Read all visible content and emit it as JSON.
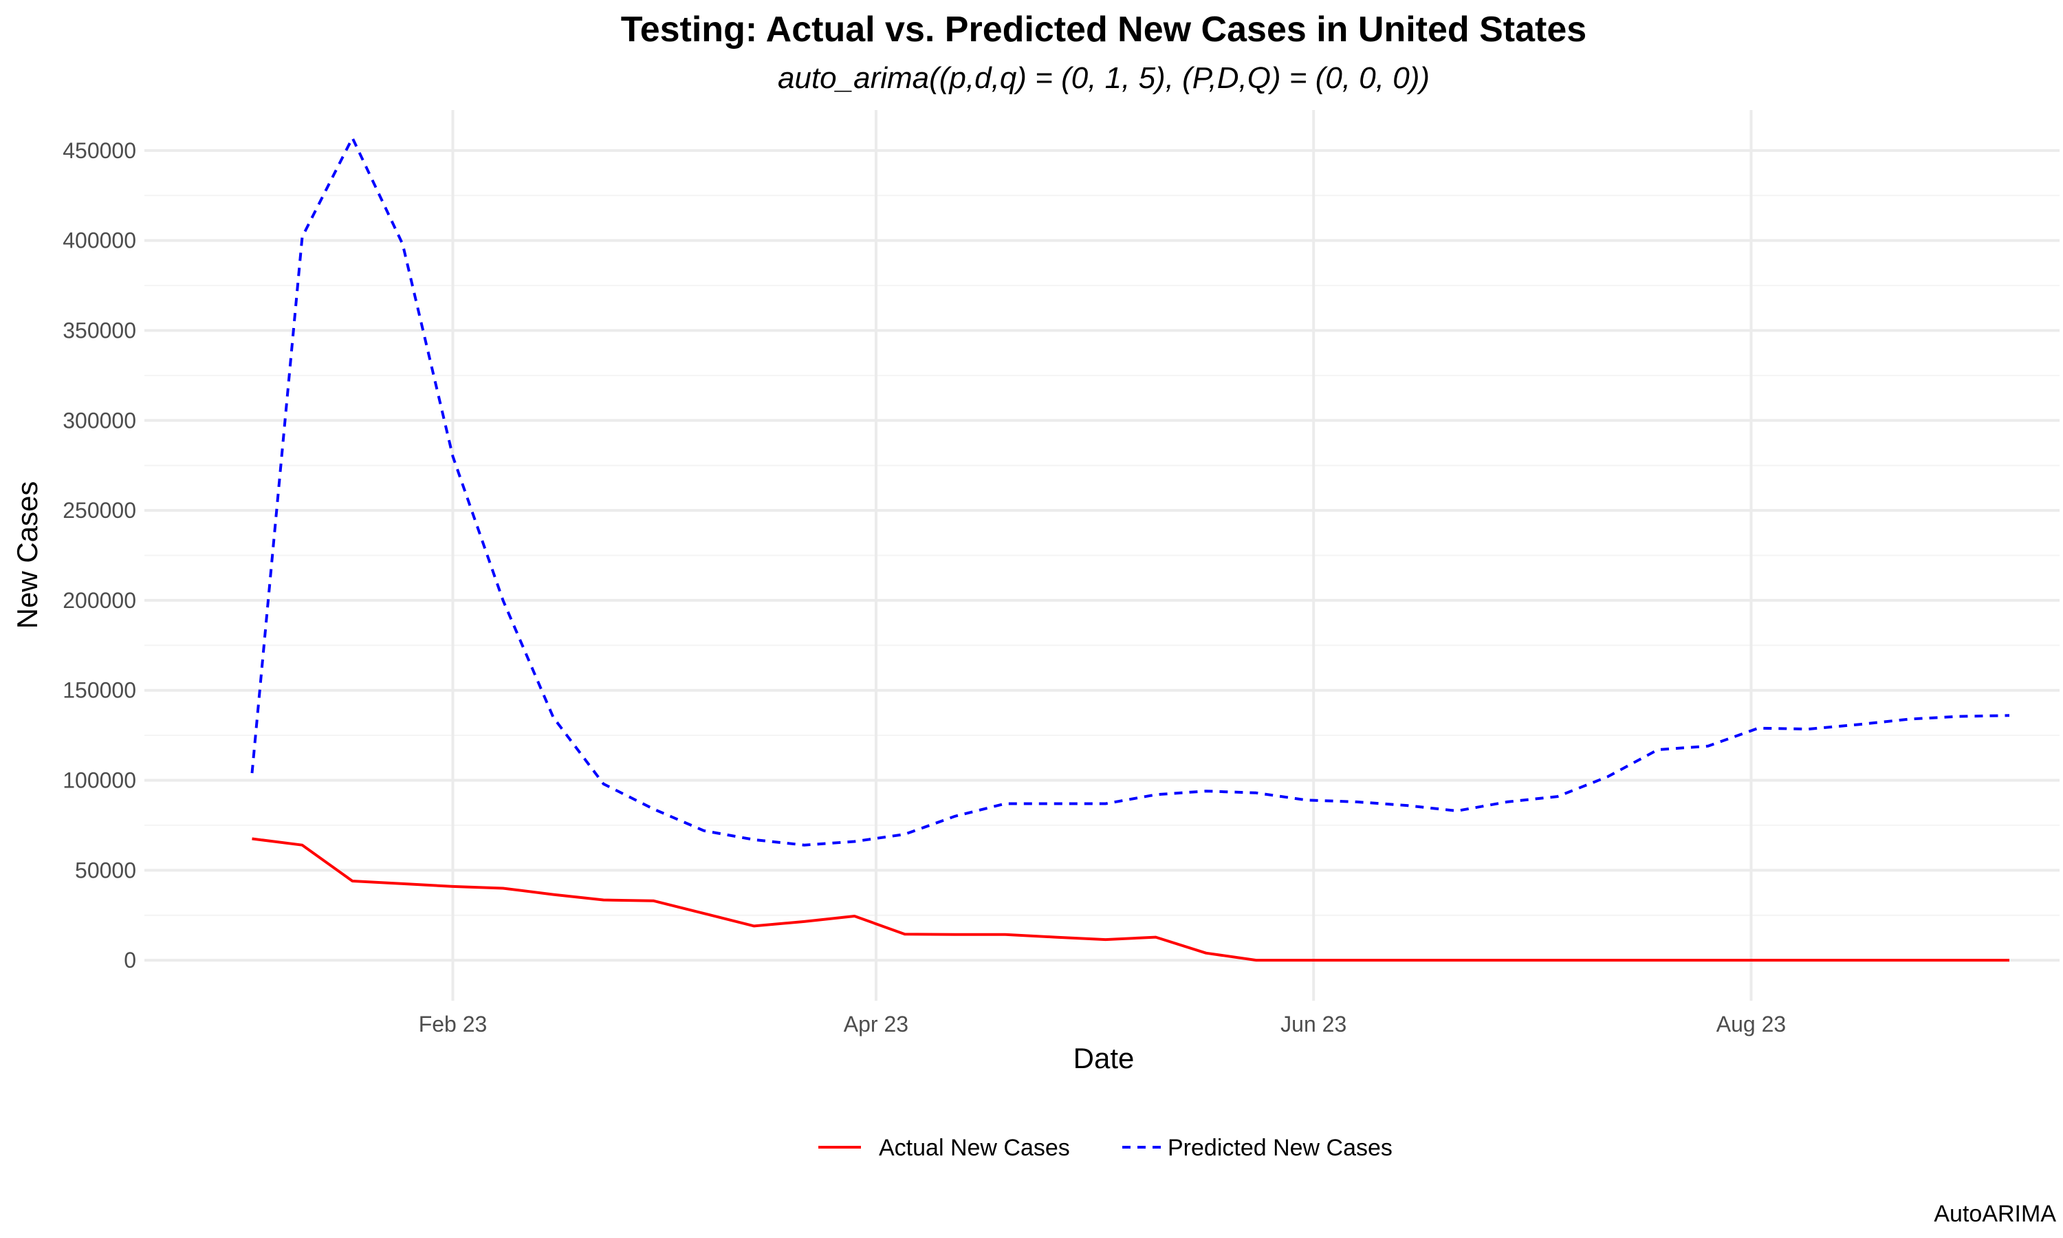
{
  "chart_data": {
    "type": "line",
    "title": "Testing: Actual vs. Predicted New Cases in United States",
    "subtitle": "auto_arima((p,d,q) = (0, 1, 5), (P,D,Q) = (0, 0, 0))",
    "xlabel": "Date",
    "ylabel": "New Cases",
    "caption": "AutoARIMA",
    "x": [
      "2023-01-04",
      "2023-01-11",
      "2023-01-18",
      "2023-01-25",
      "2023-02-01",
      "2023-02-08",
      "2023-02-15",
      "2023-02-22",
      "2023-03-01",
      "2023-03-08",
      "2023-03-15",
      "2023-03-22",
      "2023-03-29",
      "2023-04-05",
      "2023-04-12",
      "2023-04-19",
      "2023-04-26",
      "2023-05-03",
      "2023-05-10",
      "2023-05-17",
      "2023-05-24",
      "2023-05-31",
      "2023-06-07",
      "2023-06-14",
      "2023-06-21",
      "2023-06-28",
      "2023-07-05",
      "2023-07-12",
      "2023-07-19",
      "2023-07-26",
      "2023-08-02",
      "2023-08-09",
      "2023-08-16",
      "2023-08-23",
      "2023-08-30",
      "2023-09-06"
    ],
    "series": [
      {
        "name": "Actual New Cases",
        "color": "#ff0000",
        "dash": "solid",
        "values": [
          67500,
          64000,
          44000,
          42500,
          41000,
          40000,
          36500,
          33500,
          33000,
          26000,
          19000,
          21500,
          24500,
          14500,
          14300,
          14300,
          12800,
          11500,
          12800,
          4000,
          0,
          0,
          0,
          0,
          0,
          0,
          0,
          0,
          0,
          0,
          0,
          0,
          0,
          0,
          0,
          0
        ]
      },
      {
        "name": "Predicted New Cases",
        "color": "#0000ff",
        "dash": "dashed",
        "values": [
          104000,
          402000,
          457000,
          398000,
          280000,
          200000,
          135000,
          98000,
          84000,
          72000,
          67000,
          64000,
          66000,
          70000,
          80000,
          87000,
          87000,
          87000,
          92000,
          94000,
          93000,
          89000,
          88000,
          86000,
          83000,
          88000,
          91000,
          102000,
          117000,
          119000,
          129000,
          128500,
          131000,
          134000,
          135500,
          136000
        ]
      }
    ],
    "y_ticks": [
      0,
      50000,
      100000,
      150000,
      200000,
      250000,
      300000,
      350000,
      400000,
      450000
    ],
    "x_ticks": [
      {
        "date": "2023-02-01",
        "label": "Feb 23"
      },
      {
        "date": "2023-04-01",
        "label": "Apr 23"
      },
      {
        "date": "2023-06-01",
        "label": "Jun 23"
      },
      {
        "date": "2023-08-01",
        "label": "Aug 23"
      }
    ],
    "xlim": [
      "2022-12-20",
      "2023-09-13"
    ],
    "ylim": [
      -22500,
      472500
    ],
    "grid": true,
    "legend_position": "bottom"
  }
}
